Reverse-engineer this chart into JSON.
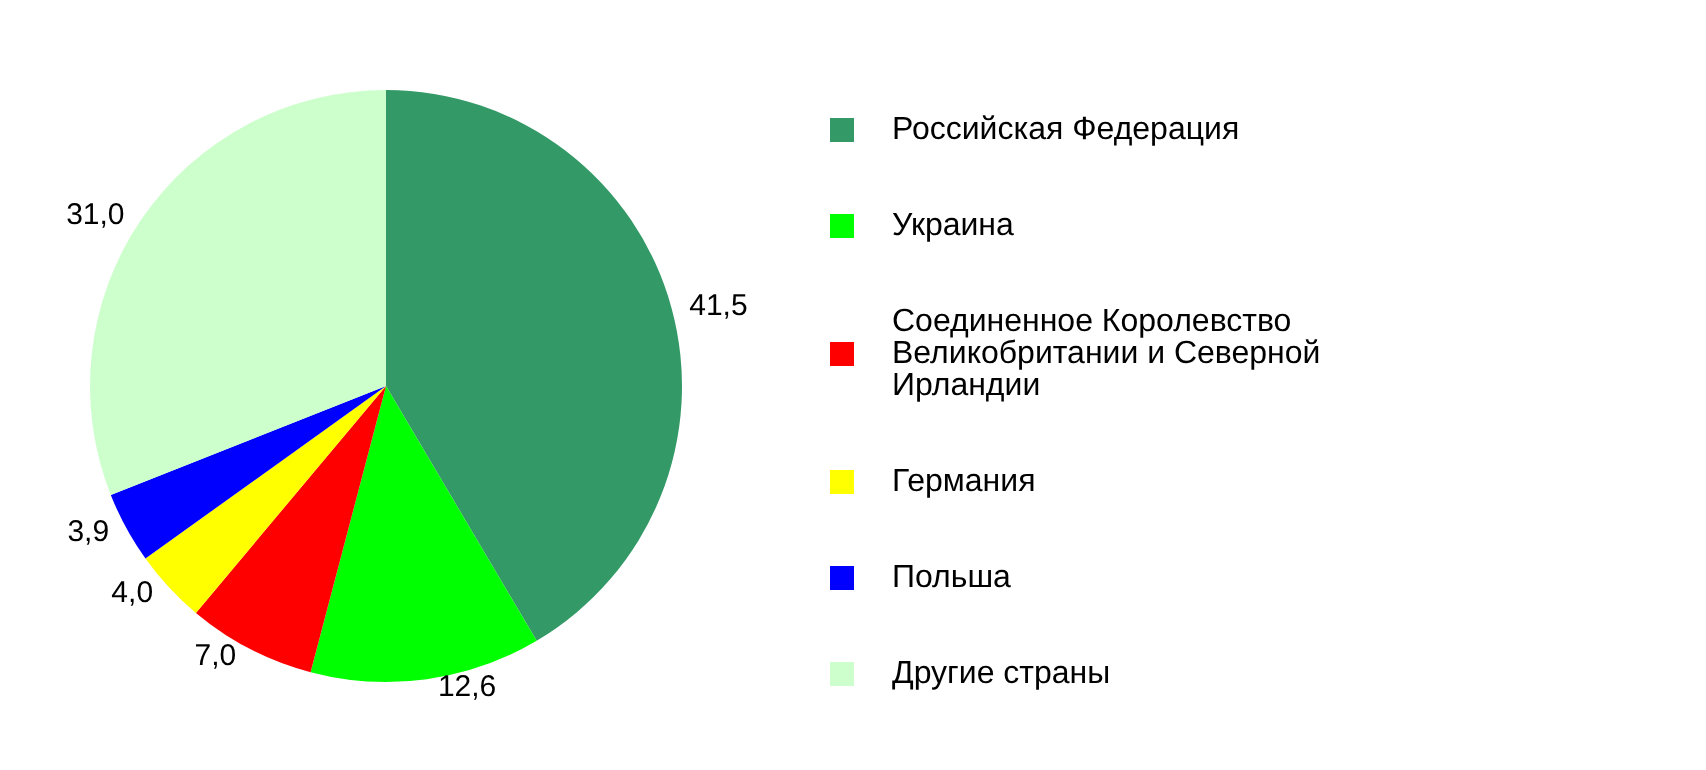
{
  "chart_data": {
    "type": "pie",
    "categories": [
      "Российская Федерация",
      "Украина",
      "Соединенное Королевство Великобритании и Северной Ирландии",
      "Германия",
      "Польша",
      "Другие страны"
    ],
    "values": [
      41.5,
      12.6,
      7.0,
      4.0,
      3.9,
      31.0
    ],
    "value_labels": [
      "41,5",
      "12,6",
      "7,0",
      "4,0",
      "3,9",
      "31,0"
    ],
    "colors": [
      "#339966",
      "#00ff00",
      "#ff0000",
      "#ffff00",
      "#0000ff",
      "#ccffcc"
    ],
    "legend": "right"
  }
}
